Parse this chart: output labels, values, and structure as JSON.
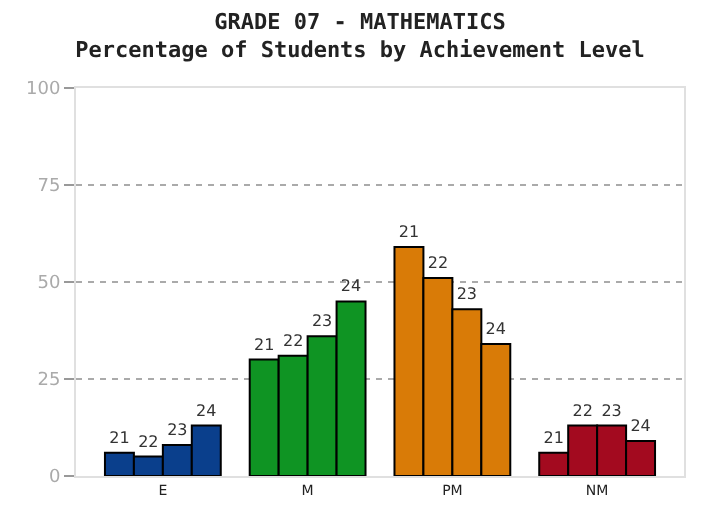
{
  "chart_data": {
    "type": "bar",
    "title": "GRADE 07 - MATHEMATICS",
    "subtitle": "Percentage of Students by Achievement Level",
    "categories": [
      "E",
      "M",
      "PM",
      "NM"
    ],
    "series": [
      {
        "name": "21",
        "colors": [
          "#0a3f8c",
          "#0f9423",
          "#d97b07",
          "#a30a1f"
        ],
        "values": [
          6,
          30,
          59,
          6
        ]
      },
      {
        "name": "22",
        "colors": [
          "#0a3f8c",
          "#0f9423",
          "#d97b07",
          "#a30a1f"
        ],
        "values": [
          5,
          31,
          51,
          13
        ]
      },
      {
        "name": "23",
        "colors": [
          "#0a3f8c",
          "#0f9423",
          "#d97b07",
          "#a30a1f"
        ],
        "values": [
          8,
          36,
          43,
          13
        ]
      },
      {
        "name": "24",
        "colors": [
          "#0a3f8c",
          "#0f9423",
          "#d97b07",
          "#a30a1f"
        ],
        "values": [
          13,
          45,
          34,
          9
        ]
      }
    ],
    "ylim": [
      0,
      100
    ],
    "yticks": [
      0,
      25,
      50,
      75,
      100
    ],
    "grid": "y"
  }
}
